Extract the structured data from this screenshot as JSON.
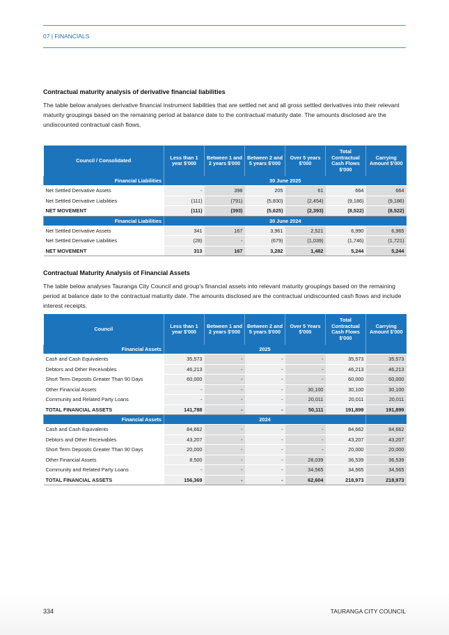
{
  "header": {
    "section": "07 | FINANCIALS"
  },
  "section1": {
    "title": "Contractual maturity analysis of derivative financial liabilities",
    "description": "The table below analyses derivative financial instrument liabilities that are settled net and all gross settled derivatives into their relevant maturity groupings based on the remaining period at balance date to the contractual maturity date. The amounts disclosed are the undiscounted contractual cash flows.",
    "columns": [
      "Council / Consolidated",
      "Less than 1 year $'000",
      "Between 1 and 2 years $'000",
      "Between 2 and 5 years $'000",
      "Over 5 years $'000",
      "Total Contractual Cash Flows $'000",
      "Carrying Amount $'000"
    ],
    "groups": [
      {
        "label": "Financial Liabilities",
        "period": "30 June 2025",
        "rows": [
          [
            "Net Settled Derivative Assets",
            "-",
            "398",
            "205",
            "61",
            "664",
            "664"
          ],
          [
            "Net Settled Derivative Liabilities",
            "(111)",
            "(791)",
            "(5,830)",
            "(2,454)",
            "(9,186)",
            "(9,186)"
          ]
        ],
        "total": [
          "NET MOVEMENT",
          "(111)",
          "(393)",
          "(5,625)",
          "(2,393)",
          "(8,522)",
          "(8,522)"
        ]
      },
      {
        "label": "Financial Liabilities",
        "period": "30 June 2024",
        "rows": [
          [
            "Net Settled Derivative Assets",
            "341",
            "167",
            "3,961",
            "2,521",
            "6,990",
            "6,965"
          ],
          [
            "Net Settled Derivative Liabilities",
            "(28)",
            "-",
            "(679)",
            "(1,039)",
            "(1,746)",
            "(1,721)"
          ]
        ],
        "total": [
          "NET MOVEMENT",
          "313",
          "167",
          "3,282",
          "1,482",
          "5,244",
          "5,244"
        ]
      }
    ]
  },
  "section2": {
    "title": "Contractual Maturity Analysis of Financial Assets",
    "description": "The table below analyses Tauranga City Council and group's financial assets into relevant maturity groupings based on the remaining period at balance date to the contractual maturity date. The amounts disclosed are the contractual undiscounted cash flows and include interest receipts.",
    "columns": [
      "Council",
      "Less than 1 year $'000",
      "Between 1 and 2 years $'000",
      "Between 2 and 5 years $'000",
      "Over 5 Years $'000",
      "Total Contractual Cash Flows $'000",
      "Carrying Amount $'000"
    ],
    "groups": [
      {
        "label": "Financial Assets",
        "period": "2025",
        "rows": [
          [
            "Cash and Cash Equivalents",
            "35,573",
            "-",
            "-",
            "-",
            "35,573",
            "35,573"
          ],
          [
            "Debtors and Other Receivables",
            "46,213",
            "-",
            "-",
            "-",
            "46,213",
            "46,213"
          ],
          [
            "Short Term Deposits Greater Than 90 Days",
            "60,000",
            "-",
            "-",
            "-",
            "60,000",
            "60,000"
          ],
          [
            "Other Financial Assets",
            "-",
            "-",
            "-",
            "30,100",
            "30,100",
            "30,100"
          ],
          [
            "Community and Related Party Loans",
            "-",
            "-",
            "-",
            "20,011",
            "20,011",
            "20,011"
          ]
        ],
        "total": [
          "TOTAL FINANCIAL ASSETS",
          "141,788",
          "-",
          "-",
          "50,111",
          "191,899",
          "191,899"
        ]
      },
      {
        "label": "Financial Assets",
        "period": "2024",
        "rows": [
          [
            "Cash and Cash Equivalents",
            "84,662",
            "-",
            "-",
            "-",
            "84,662",
            "84,662"
          ],
          [
            "Debtors and Other Receivables",
            "43,207",
            "-",
            "-",
            "-",
            "43,207",
            "43,207"
          ],
          [
            "Short Term Deposits Greater Than 90 Days",
            "20,000",
            "-",
            "-",
            "-",
            "20,000",
            "20,000"
          ],
          [
            "Other Financial Assets",
            "8,500",
            "-",
            "-",
            "28,039",
            "36,539",
            "36,539"
          ],
          [
            "Community and Related Party Loans",
            "-",
            "-",
            "-",
            "34,565",
            "34,565",
            "34,565"
          ]
        ],
        "total": [
          "TOTAL FINANCIAL ASSETS",
          "156,369",
          "-",
          "-",
          "62,604",
          "218,973",
          "218,973"
        ]
      }
    ]
  },
  "footer": {
    "page_number": "334",
    "organisation": "TAURANGA CITY COUNCIL"
  },
  "colors": {
    "accent": "#1c75bc"
  }
}
